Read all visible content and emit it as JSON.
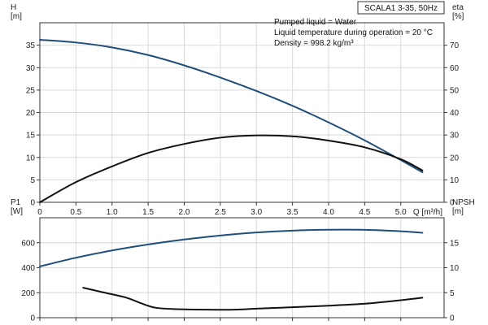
{
  "chart_data": [
    {
      "type": "line",
      "x_label": "Q [m³/h]",
      "x_lim": [
        0,
        5.6
      ],
      "x_ticks": [
        0,
        0.5,
        1.0,
        1.5,
        2.0,
        2.5,
        3.0,
        3.5,
        4.0,
        4.5,
        5.0
      ],
      "y_label": "H\n[m]",
      "y_lim": [
        0,
        40
      ],
      "y_ticks": [
        0,
        5,
        10,
        15,
        20,
        25,
        30,
        35
      ],
      "y2_label": "eta\n[%]",
      "y2_lim": [
        0,
        80
      ],
      "y2_ticks": [
        0,
        10,
        20,
        30,
        40,
        50,
        60,
        70
      ],
      "grid": true,
      "title_box": "SCALA1 3-35, 50Hz",
      "annotations": [
        "Pumped liquid = Water",
        "Liquid temperature during operation = 20 °C",
        "Density = 998.2 kg/m³"
      ],
      "series": [
        {
          "axis": "left",
          "color": "#1f4e7a",
          "x": [
            0,
            0.5,
            1.0,
            1.5,
            2.0,
            2.5,
            3.0,
            3.5,
            4.0,
            4.5,
            5.0,
            5.3
          ],
          "y": [
            36.2,
            35.6,
            34.5,
            32.8,
            30.5,
            27.8,
            24.8,
            21.5,
            17.8,
            13.8,
            9.4,
            6.7
          ]
        },
        {
          "axis": "right",
          "color": "#111111",
          "x": [
            0,
            0.5,
            1.0,
            1.5,
            2.0,
            2.5,
            3.0,
            3.5,
            4.0,
            4.5,
            5.0,
            5.3
          ],
          "y": [
            0,
            9,
            16,
            22,
            26,
            28.8,
            29.8,
            29.4,
            27.5,
            24.5,
            19.2,
            14.2
          ]
        }
      ]
    },
    {
      "type": "line",
      "x_lim": [
        0,
        5.6
      ],
      "x_ticks": [
        0,
        0.5,
        1.0,
        1.5,
        2.0,
        2.5,
        3.0,
        3.5,
        4.0,
        4.5,
        5.0
      ],
      "y_label": "P1\n[W]",
      "y_lim": [
        0,
        800
      ],
      "y_ticks": [
        0,
        200,
        400,
        600
      ],
      "y2_label": "NPSH\n[m]",
      "y2_lim": [
        0,
        20
      ],
      "y2_ticks": [
        0,
        5,
        10,
        15
      ],
      "grid": true,
      "series": [
        {
          "axis": "left",
          "color": "#1f4e7a",
          "x": [
            0,
            0.5,
            1.0,
            1.5,
            2.0,
            2.5,
            3.0,
            3.5,
            4.0,
            4.5,
            5.0,
            5.3
          ],
          "y": [
            410,
            480,
            538,
            586,
            626,
            658,
            682,
            697,
            704,
            703,
            692,
            680
          ]
        },
        {
          "axis": "right",
          "color": "#111111",
          "x": [
            0.6,
            0.9,
            1.2,
            1.4,
            1.6,
            1.9,
            2.3,
            2.7,
            3.0,
            3.5,
            4.0,
            4.5,
            5.0,
            5.3
          ],
          "y": [
            6.0,
            5.0,
            4.0,
            2.9,
            2.0,
            1.7,
            1.6,
            1.6,
            1.8,
            2.1,
            2.4,
            2.8,
            3.5,
            4.0
          ]
        }
      ]
    }
  ]
}
